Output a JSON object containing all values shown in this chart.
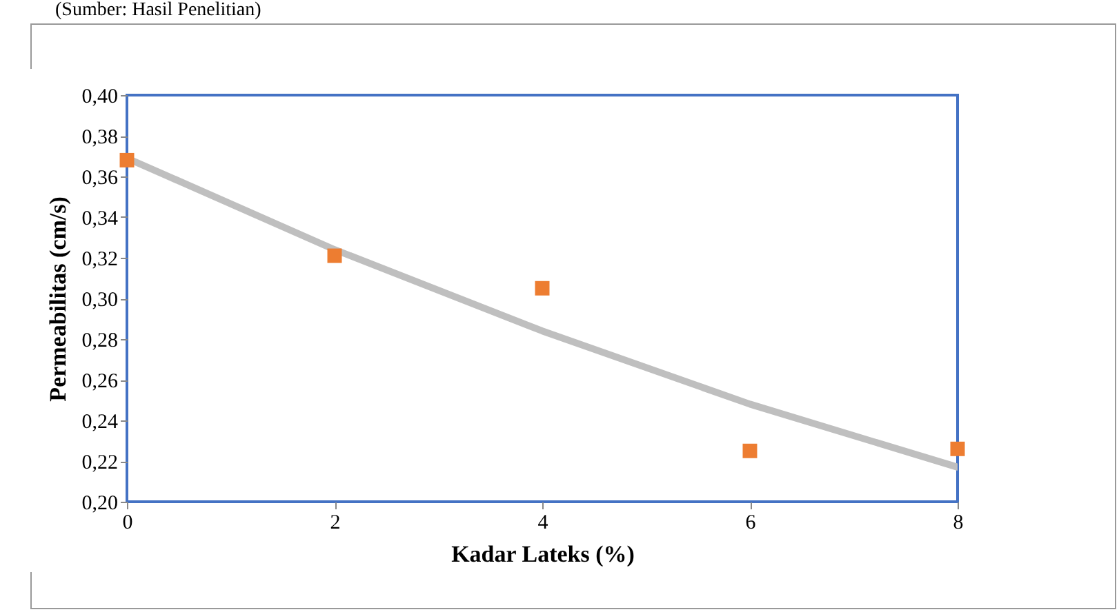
{
  "chart_data": {
    "type": "scatter",
    "annotations": [
      "(Sumber: Hasil Penelitian)"
    ],
    "xlabel": "Kadar Lateks (%)",
    "ylabel": "Permeabilitas (cm/s)",
    "series": [
      {
        "color": "#ed7d31",
        "marker": "square",
        "x": [
          0,
          2,
          4,
          6,
          8
        ],
        "values": [
          0.368,
          0.321,
          0.305,
          0.225,
          0.226
        ]
      },
      {
        "type": "line",
        "color": "#bfbfbf",
        "x": [
          0,
          2,
          4,
          6,
          8
        ],
        "values": [
          0.369,
          0.324,
          0.284,
          0.248,
          0.217
        ]
      }
    ],
    "xlim": [
      0,
      8
    ],
    "xticks": [
      0,
      2,
      4,
      6,
      8
    ],
    "ylim": [
      0.2,
      0.4
    ],
    "yticks": [
      {
        "value": 0.2,
        "label": "0,20"
      },
      {
        "value": 0.22,
        "label": "0,22"
      },
      {
        "value": 0.24,
        "label": "0,24"
      },
      {
        "value": 0.26,
        "label": "0,26"
      },
      {
        "value": 0.28,
        "label": "0,28"
      },
      {
        "value": 0.3,
        "label": "0,30"
      },
      {
        "value": 0.32,
        "label": "0,32"
      },
      {
        "value": 0.34,
        "label": "0,34"
      },
      {
        "value": 0.36,
        "label": "0,36"
      },
      {
        "value": 0.38,
        "label": "0,38"
      },
      {
        "value": 0.4,
        "label": "0,40"
      }
    ],
    "grid": false
  }
}
